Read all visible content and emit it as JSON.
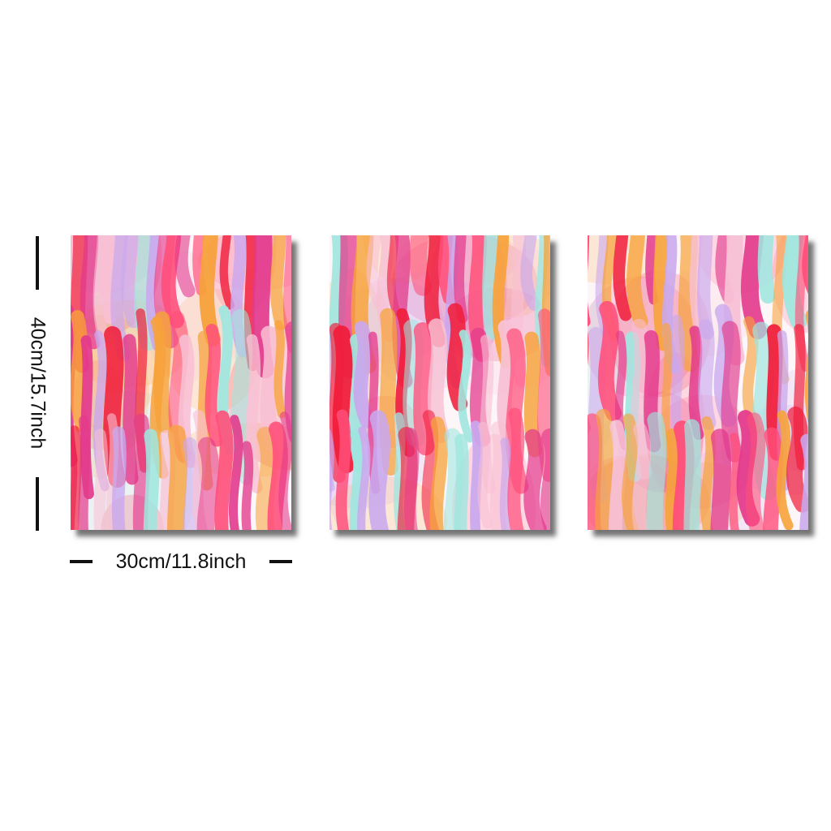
{
  "artwork": {
    "panels": [
      {
        "id": "panel-1",
        "seed": 11,
        "colors": [
          "#f01e3c",
          "#ff4f7a",
          "#f7a23a",
          "#f8c0d4",
          "#c9a8ee",
          "#9fe6df",
          "#e33a8c"
        ]
      },
      {
        "id": "panel-2",
        "seed": 37,
        "colors": [
          "#f01e3c",
          "#ff4f7a",
          "#f7a23a",
          "#f8c0d4",
          "#c9a8ee",
          "#9fe6df",
          "#e33a8c"
        ]
      },
      {
        "id": "panel-3",
        "seed": 73,
        "colors": [
          "#f01e3c",
          "#ff4f7a",
          "#f7a23a",
          "#f8c0d4",
          "#c9a8ee",
          "#9fe6df",
          "#e33a8c"
        ]
      }
    ]
  },
  "dimensions": {
    "width_label": "30cm/11.8inch",
    "height_label": "40cm/15.7inch"
  }
}
